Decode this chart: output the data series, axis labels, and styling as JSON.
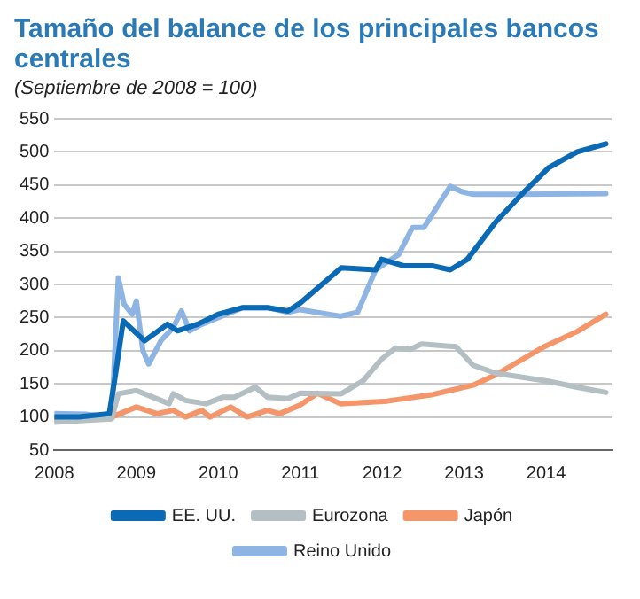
{
  "chart_data": {
    "type": "line",
    "title": "Tamaño del balance de los principales bancos centrales",
    "subtitle": "(Septiembre de 2008 = 100)",
    "xlim": [
      2008,
      2014.8
    ],
    "xticks": [
      2008,
      2009,
      2010,
      2011,
      2012,
      2013,
      2014
    ],
    "ylim": [
      50,
      550
    ],
    "yticks": [
      50,
      100,
      150,
      200,
      250,
      300,
      350,
      400,
      450,
      500,
      550
    ],
    "grid": "y",
    "legend": "bottom",
    "marker": "none",
    "line_style": "solid",
    "series": [
      {
        "name": "EE. UU.",
        "color": "#0a6ab5",
        "x": [
          2008,
          2008.3,
          2008.67,
          2008.74,
          2008.84,
          2009.1,
          2009.38,
          2009.5,
          2009.75,
          2010,
          2010.3,
          2010.6,
          2010.85,
          2011,
          2011.5,
          2011.92,
          2011.99,
          2012.27,
          2012.62,
          2012.83,
          2013.04,
          2013.39,
          2013.75,
          2014.03,
          2014.38,
          2014.73
        ],
        "values": [
          100,
          100,
          105,
          160,
          245,
          215,
          240,
          230,
          240,
          255,
          265,
          265,
          260,
          272,
          325,
          322,
          338,
          328,
          328,
          322,
          338,
          395,
          442,
          476,
          500,
          512
        ]
      },
      {
        "name": "Eurozona",
        "color": "#b4bfc3",
        "x": [
          2008,
          2008.4,
          2008.7,
          2008.78,
          2009,
          2009.3,
          2009.4,
          2009.45,
          2009.6,
          2009.85,
          2010.06,
          2010.2,
          2010.45,
          2010.6,
          2010.85,
          2011,
          2011.5,
          2011.77,
          2011.99,
          2012.16,
          2012.34,
          2012.48,
          2012.9,
          2013.11,
          2013.39,
          2014.03,
          2014.38,
          2014.73
        ],
        "values": [
          92,
          95,
          97,
          135,
          140,
          125,
          120,
          135,
          125,
          120,
          130,
          130,
          145,
          130,
          128,
          136,
          135,
          155,
          187,
          204,
          202,
          210,
          206,
          178,
          166,
          154,
          145,
          137
        ]
      },
      {
        "name": "Japón",
        "color": "#f4956a",
        "x": [
          2008,
          2008.4,
          2008.7,
          2009,
          2009.25,
          2009.45,
          2009.6,
          2009.8,
          2009.9,
          2010.15,
          2010.35,
          2010.6,
          2010.75,
          2011,
          2011.21,
          2011.49,
          2012.06,
          2012.62,
          2013.11,
          2013.39,
          2013.96,
          2014.38,
          2014.73
        ],
        "values": [
          95,
          97,
          100,
          115,
          105,
          110,
          100,
          110,
          100,
          115,
          100,
          110,
          105,
          118,
          136,
          120,
          124,
          134,
          148,
          164,
          205,
          229,
          255
        ]
      },
      {
        "name": "Reino Unido",
        "color": "#8db4e2",
        "x": [
          2008,
          2008.4,
          2008.7,
          2008.78,
          2008.85,
          2008.95,
          2009,
          2009.08,
          2009.15,
          2009.3,
          2009.45,
          2009.55,
          2009.65,
          2009.8,
          2010,
          2010.3,
          2010.6,
          2010.85,
          2011,
          2011.49,
          2011.7,
          2011.92,
          2012.2,
          2012.37,
          2012.51,
          2012.83,
          2012.97,
          2013.11,
          2013.68,
          2014.73
        ],
        "values": [
          105,
          104,
          100,
          310,
          270,
          255,
          275,
          200,
          180,
          215,
          235,
          260,
          230,
          240,
          250,
          265,
          265,
          258,
          262,
          252,
          258,
          322,
          345,
          386,
          386,
          448,
          440,
          436,
          436,
          437
        ]
      }
    ]
  }
}
